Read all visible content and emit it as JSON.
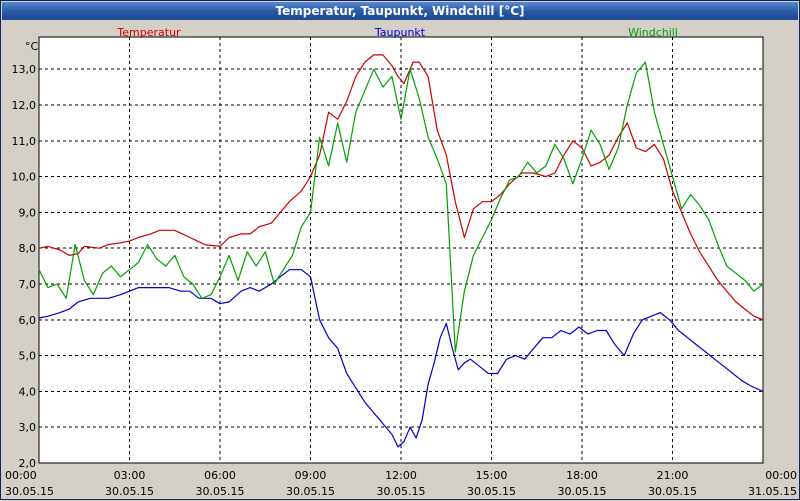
{
  "window": {
    "title": "Temperatur, Taupunkt, Windchill [°C]"
  },
  "chart_data": {
    "type": "line",
    "title": "Temperatur, Taupunkt, Windchill [°C]",
    "ylabel": "°C",
    "ylim": [
      2.0,
      13.9
    ],
    "xlim": [
      0,
      24
    ],
    "yticks": [
      2.0,
      3.0,
      4.0,
      5.0,
      6.0,
      7.0,
      8.0,
      9.0,
      10.0,
      11.0,
      12.0,
      13.0
    ],
    "ytick_labels": [
      "2,0",
      "3,0",
      "4,0",
      "5,0",
      "6,0",
      "7,0",
      "8,0",
      "9,0",
      "10,0",
      "11,0",
      "12,0",
      "13,0"
    ],
    "xticks": [
      {
        "h": 0,
        "time": "00:00",
        "date": "30.05.15"
      },
      {
        "h": 3,
        "time": "03:00",
        "date": "30.05.15"
      },
      {
        "h": 6,
        "time": "06:00",
        "date": "30.05.15"
      },
      {
        "h": 9,
        "time": "09:00",
        "date": "30.05.15"
      },
      {
        "h": 12,
        "time": "12:00",
        "date": "30.05.15"
      },
      {
        "h": 15,
        "time": "15:00",
        "date": "30.05.15"
      },
      {
        "h": 18,
        "time": "18:00",
        "date": "30.05.15"
      },
      {
        "h": 21,
        "time": "21:00",
        "date": "30.05.15"
      },
      {
        "h": 24,
        "time": "00:00",
        "date": "31.05.15"
      }
    ],
    "grid": true,
    "series": [
      {
        "name": "Temperatur",
        "color": "#cc0000",
        "x": [
          0,
          0.3,
          0.7,
          1,
          1.3,
          1.5,
          2,
          2.3,
          2.7,
          3,
          3.3,
          3.7,
          4,
          4.5,
          5,
          5.5,
          6,
          6.3,
          6.7,
          7,
          7.3,
          7.7,
          8,
          8.3,
          8.7,
          9,
          9.3,
          9.6,
          9.9,
          10.2,
          10.5,
          10.8,
          11.1,
          11.4,
          11.7,
          11.9,
          12.1,
          12.4,
          12.6,
          12.9,
          13.2,
          13.5,
          13.8,
          14.1,
          14.4,
          14.7,
          15,
          15.3,
          15.6,
          16,
          16.4,
          16.8,
          17.1,
          17.4,
          17.7,
          18,
          18.3,
          18.6,
          18.9,
          19.2,
          19.5,
          19.8,
          20.1,
          20.4,
          20.7,
          21,
          21.3,
          21.6,
          21.9,
          22.2,
          22.5,
          22.8,
          23.1,
          23.4,
          23.7,
          24
        ],
        "values": [
          8.0,
          8.05,
          7.95,
          7.8,
          7.85,
          8.05,
          8.0,
          8.1,
          8.15,
          8.2,
          8.3,
          8.4,
          8.5,
          8.5,
          8.3,
          8.1,
          8.05,
          8.3,
          8.4,
          8.4,
          8.6,
          8.7,
          9.0,
          9.3,
          9.6,
          10.0,
          10.6,
          11.8,
          11.6,
          12.1,
          12.8,
          13.2,
          13.4,
          13.4,
          13.1,
          12.8,
          12.6,
          13.2,
          13.2,
          12.8,
          11.3,
          10.6,
          9.3,
          8.3,
          9.1,
          9.3,
          9.3,
          9.5,
          9.8,
          10.1,
          10.1,
          10.0,
          10.1,
          10.6,
          11.0,
          10.8,
          10.3,
          10.4,
          10.6,
          11.1,
          11.5,
          10.8,
          10.7,
          10.9,
          10.5,
          9.6,
          9.0,
          8.4,
          7.9,
          7.5,
          7.1,
          6.8,
          6.5,
          6.3,
          6.1,
          6.0
        ]
      },
      {
        "name": "Taupunkt",
        "color": "#0000cc",
        "x": [
          0,
          0.3,
          0.7,
          1,
          1.3,
          1.7,
          2,
          2.3,
          2.7,
          3,
          3.3,
          3.7,
          4,
          4.3,
          4.7,
          5,
          5.3,
          5.7,
          6,
          6.3,
          6.7,
          7,
          7.3,
          7.7,
          8,
          8.3,
          8.7,
          9,
          9.3,
          9.6,
          9.9,
          10.2,
          10.5,
          10.8,
          11.1,
          11.4,
          11.7,
          11.9,
          12.1,
          12.3,
          12.5,
          12.7,
          12.9,
          13.1,
          13.3,
          13.5,
          13.7,
          13.9,
          14.1,
          14.3,
          14.6,
          14.9,
          15.2,
          15.5,
          15.8,
          16.1,
          16.4,
          16.7,
          17.0,
          17.3,
          17.6,
          17.9,
          18.2,
          18.5,
          18.8,
          19.1,
          19.4,
          19.7,
          20.0,
          20.3,
          20.6,
          20.9,
          21.2,
          21.5,
          21.8,
          22.1,
          22.4,
          22.7,
          23.0,
          23.3,
          23.6,
          24
        ],
        "values": [
          6.05,
          6.1,
          6.2,
          6.3,
          6.5,
          6.6,
          6.6,
          6.6,
          6.7,
          6.8,
          6.9,
          6.9,
          6.9,
          6.9,
          6.8,
          6.8,
          6.6,
          6.6,
          6.45,
          6.5,
          6.8,
          6.9,
          6.8,
          7.0,
          7.2,
          7.4,
          7.4,
          7.2,
          6.0,
          5.5,
          5.2,
          4.5,
          4.1,
          3.7,
          3.4,
          3.1,
          2.8,
          2.45,
          2.6,
          3.0,
          2.7,
          3.2,
          4.2,
          4.8,
          5.5,
          5.9,
          5.2,
          4.6,
          4.8,
          4.9,
          4.7,
          4.5,
          4.5,
          4.9,
          5.0,
          4.9,
          5.2,
          5.5,
          5.5,
          5.7,
          5.6,
          5.8,
          5.6,
          5.7,
          5.7,
          5.3,
          5.0,
          5.6,
          6.0,
          6.1,
          6.2,
          6.0,
          5.7,
          5.5,
          5.3,
          5.1,
          4.9,
          4.7,
          4.5,
          4.3,
          4.15,
          4.0
        ]
      },
      {
        "name": "Windchill",
        "color": "#00a000",
        "x": [
          0,
          0.3,
          0.6,
          0.9,
          1.2,
          1.5,
          1.8,
          2.1,
          2.4,
          2.7,
          3.0,
          3.3,
          3.6,
          3.9,
          4.2,
          4.5,
          4.8,
          5.1,
          5.4,
          5.7,
          6.0,
          6.3,
          6.6,
          6.9,
          7.2,
          7.5,
          7.8,
          8.1,
          8.4,
          8.7,
          9.0,
          9.3,
          9.6,
          9.9,
          10.2,
          10.5,
          10.8,
          11.1,
          11.4,
          11.7,
          12.0,
          12.3,
          12.6,
          12.9,
          13.2,
          13.5,
          13.8,
          14.1,
          14.4,
          14.7,
          15.0,
          15.3,
          15.6,
          15.9,
          16.2,
          16.5,
          16.8,
          17.1,
          17.4,
          17.7,
          18.0,
          18.3,
          18.6,
          18.9,
          19.2,
          19.5,
          19.8,
          20.1,
          20.4,
          20.7,
          21.0,
          21.3,
          21.6,
          21.9,
          22.2,
          22.5,
          22.8,
          23.1,
          23.4,
          23.7,
          24
        ],
        "values": [
          7.4,
          6.9,
          7.0,
          6.6,
          8.1,
          7.1,
          6.7,
          7.3,
          7.5,
          7.2,
          7.4,
          7.6,
          8.1,
          7.7,
          7.5,
          7.8,
          7.2,
          7.0,
          6.6,
          6.7,
          7.2,
          7.8,
          7.1,
          7.9,
          7.5,
          7.9,
          7.0,
          7.4,
          7.8,
          8.6,
          9.0,
          11.1,
          10.3,
          11.5,
          10.4,
          11.8,
          12.4,
          13.0,
          12.5,
          12.8,
          11.6,
          13.0,
          12.2,
          11.1,
          10.5,
          9.8,
          5.1,
          6.8,
          7.8,
          8.3,
          8.8,
          9.4,
          9.9,
          10.0,
          10.4,
          10.1,
          10.3,
          10.9,
          10.5,
          9.8,
          10.5,
          11.3,
          10.9,
          10.2,
          10.8,
          12.0,
          12.9,
          13.2,
          11.8,
          10.9,
          10.0,
          9.1,
          9.5,
          9.2,
          8.8,
          8.1,
          7.5,
          7.3,
          7.1,
          6.8,
          7.0
        ]
      }
    ]
  }
}
